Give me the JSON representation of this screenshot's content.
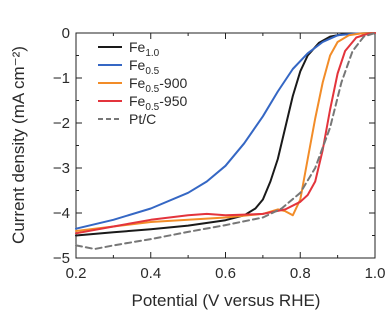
{
  "chart_data": {
    "type": "line",
    "title": "",
    "xlabel": "Potential (V versus RHE)",
    "ylabel": "Current density (mA cm⁻²)",
    "xlim": [
      0.2,
      1.0
    ],
    "ylim": [
      -5,
      0
    ],
    "x_ticks": [
      "0.2",
      "0.4",
      "0.6",
      "0.8",
      "1.0"
    ],
    "y_ticks": [
      "0",
      "−1",
      "−2",
      "−3",
      "−4",
      "−5"
    ],
    "legend_position": "top-left",
    "grid": false,
    "series": [
      {
        "legend_main": "Fe",
        "legend_sub": "1.0",
        "legend_tail": "",
        "color": "#1a1a1a",
        "dash": false,
        "points": [
          [
            0.2,
            -4.5
          ],
          [
            0.3,
            -4.43
          ],
          [
            0.4,
            -4.36
          ],
          [
            0.5,
            -4.28
          ],
          [
            0.6,
            -4.16
          ],
          [
            0.65,
            -4.05
          ],
          [
            0.68,
            -3.9
          ],
          [
            0.7,
            -3.7
          ],
          [
            0.72,
            -3.3
          ],
          [
            0.74,
            -2.8
          ],
          [
            0.76,
            -2.1
          ],
          [
            0.78,
            -1.4
          ],
          [
            0.8,
            -0.85
          ],
          [
            0.82,
            -0.5
          ],
          [
            0.85,
            -0.22
          ],
          [
            0.88,
            -0.08
          ],
          [
            0.92,
            -0.02
          ],
          [
            0.96,
            -0.01
          ],
          [
            1.0,
            0
          ]
        ]
      },
      {
        "legend_main": "Fe",
        "legend_sub": "0.5",
        "legend_tail": "",
        "color": "#3567c4",
        "dash": false,
        "points": [
          [
            0.2,
            -4.35
          ],
          [
            0.3,
            -4.15
          ],
          [
            0.4,
            -3.9
          ],
          [
            0.5,
            -3.55
          ],
          [
            0.55,
            -3.3
          ],
          [
            0.6,
            -2.95
          ],
          [
            0.65,
            -2.45
          ],
          [
            0.7,
            -1.85
          ],
          [
            0.74,
            -1.3
          ],
          [
            0.78,
            -0.8
          ],
          [
            0.82,
            -0.45
          ],
          [
            0.86,
            -0.2
          ],
          [
            0.9,
            -0.05
          ],
          [
            0.95,
            -0.01
          ],
          [
            1.0,
            0
          ]
        ]
      },
      {
        "legend_main": "Fe",
        "legend_sub": "0.5",
        "legend_tail": "-900",
        "color": "#f28c28",
        "dash": false,
        "points": [
          [
            0.2,
            -4.4
          ],
          [
            0.3,
            -4.3
          ],
          [
            0.4,
            -4.2
          ],
          [
            0.5,
            -4.15
          ],
          [
            0.6,
            -4.1
          ],
          [
            0.7,
            -4.02
          ],
          [
            0.74,
            -3.92
          ],
          [
            0.76,
            -3.96
          ],
          [
            0.78,
            -4.05
          ],
          [
            0.8,
            -3.7
          ],
          [
            0.82,
            -2.8
          ],
          [
            0.84,
            -1.9
          ],
          [
            0.86,
            -1.1
          ],
          [
            0.88,
            -0.5
          ],
          [
            0.9,
            -0.2
          ],
          [
            0.93,
            -0.05
          ],
          [
            0.96,
            -0.01
          ],
          [
            1.0,
            0
          ]
        ]
      },
      {
        "legend_main": "Fe",
        "legend_sub": "0.5",
        "legend_tail": "-950",
        "color": "#e3343c",
        "dash": false,
        "points": [
          [
            0.2,
            -4.45
          ],
          [
            0.3,
            -4.3
          ],
          [
            0.4,
            -4.15
          ],
          [
            0.5,
            -4.05
          ],
          [
            0.55,
            -4.02
          ],
          [
            0.6,
            -4.05
          ],
          [
            0.7,
            -4.02
          ],
          [
            0.76,
            -3.92
          ],
          [
            0.8,
            -3.75
          ],
          [
            0.82,
            -3.6
          ],
          [
            0.84,
            -3.3
          ],
          [
            0.86,
            -2.6
          ],
          [
            0.88,
            -1.7
          ],
          [
            0.9,
            -0.9
          ],
          [
            0.92,
            -0.4
          ],
          [
            0.95,
            -0.1
          ],
          [
            0.98,
            -0.02
          ],
          [
            1.0,
            0
          ]
        ]
      },
      {
        "legend_main": "Pt/C",
        "legend_sub": "",
        "legend_tail": "",
        "color": "#777777",
        "dash": true,
        "points": [
          [
            0.2,
            -4.72
          ],
          [
            0.25,
            -4.8
          ],
          [
            0.3,
            -4.72
          ],
          [
            0.4,
            -4.58
          ],
          [
            0.5,
            -4.42
          ],
          [
            0.6,
            -4.27
          ],
          [
            0.7,
            -4.1
          ],
          [
            0.75,
            -3.9
          ],
          [
            0.8,
            -3.55
          ],
          [
            0.84,
            -3.0
          ],
          [
            0.88,
            -2.1
          ],
          [
            0.91,
            -1.1
          ],
          [
            0.94,
            -0.4
          ],
          [
            0.97,
            -0.08
          ],
          [
            1.0,
            0
          ]
        ]
      }
    ]
  }
}
